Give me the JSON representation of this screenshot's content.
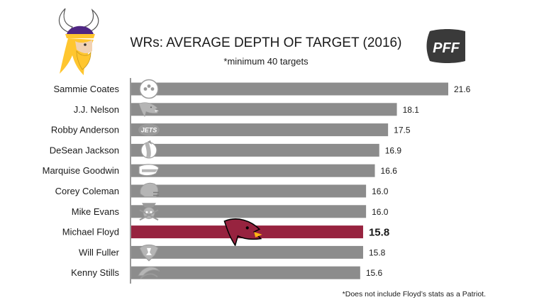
{
  "chart_data": {
    "type": "bar",
    "orientation": "horizontal",
    "title": "WRs: AVERAGE DEPTH OF TARGET (2016)",
    "subtitle": "*minimum 40 targets",
    "footnote": "*Does not include Floyd’s stats as a Patriot.",
    "categories": [
      "Sammie Coates",
      "J.J. Nelson",
      "Robby Anderson",
      "DeSean Jackson",
      "Marquise Goodwin",
      "Corey Coleman",
      "Mike Evans",
      "Michael Floyd",
      "Will Fuller",
      "Kenny Stills"
    ],
    "values": [
      21.6,
      18.1,
      17.5,
      16.9,
      16.6,
      16.0,
      16.0,
      15.8,
      15.8,
      15.6
    ],
    "value_labels": [
      "21.6",
      "18.1",
      "17.5",
      "16.9",
      "16.6",
      "16.0",
      "16.0",
      "15.8",
      "15.8",
      "15.6"
    ],
    "team_icons": [
      "steelers-logo-icon",
      "cardinals-logo-icon",
      "jets-logo-icon",
      "redskins-logo-icon",
      "bills-logo-icon",
      "browns-helmet-icon",
      "buccaneers-logo-icon",
      "cardinals-logo-icon",
      "texans-logo-icon",
      "dolphins-logo-icon"
    ],
    "highlight_index": 7,
    "xlim": [
      0,
      21.6
    ],
    "colors": {
      "bar": "#8c8c8c",
      "highlight": "#97233f",
      "axis": "#333333"
    }
  }
}
